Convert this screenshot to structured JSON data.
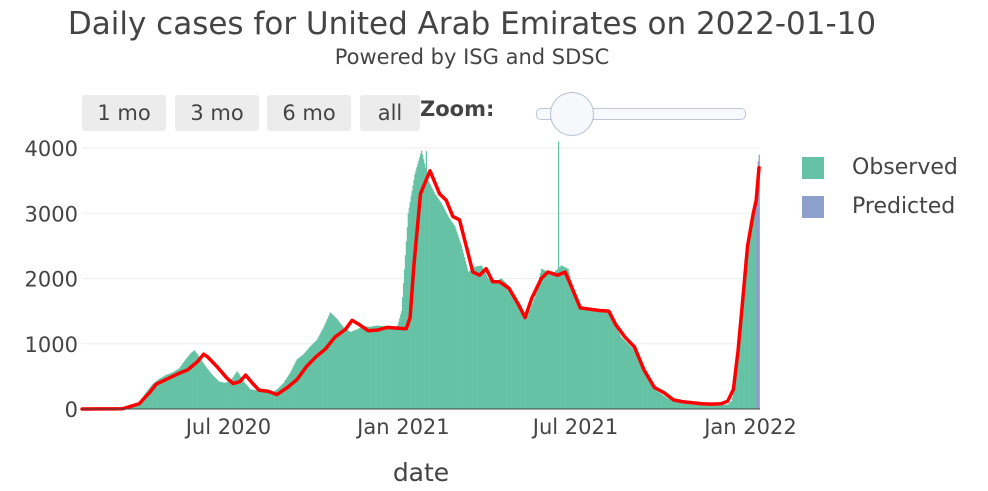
{
  "header": {
    "title": "Daily cases for United Arab Emirates on 2022-01-10",
    "subtitle": "Powered by ISG and SDSC"
  },
  "range_selector": {
    "buttons": [
      "1 mo",
      "3 mo",
      "6 mo",
      "all"
    ],
    "zoom_label": "Zoom:"
  },
  "legend": {
    "observed": "Observed",
    "predicted": "Predicted"
  },
  "colors": {
    "observed": "#66c2a5",
    "predicted": "#8da0cb",
    "trend": "#ff0000",
    "grid": "#eeeeee",
    "text": "#444444"
  },
  "chart_data": {
    "type": "bar",
    "xlabel": "date",
    "ylabel": "",
    "ylim": [
      0,
      4000
    ],
    "x_range": [
      "2020-01-29",
      "2022-01-11"
    ],
    "y_ticks": [
      0,
      1000,
      2000,
      3000,
      4000
    ],
    "x_ticks": [
      {
        "date": "2020-07-01",
        "label": "Jul 2020"
      },
      {
        "date": "2021-01-01",
        "label": "Jan 2021"
      },
      {
        "date": "2021-07-01",
        "label": "Jul 2021"
      },
      {
        "date": "2022-01-01",
        "label": "Jan 2022"
      }
    ],
    "series": [
      {
        "name": "Observed",
        "kind": "bar",
        "points": [
          [
            "2020-01-29",
            0
          ],
          [
            "2020-02-20",
            5
          ],
          [
            "2020-03-15",
            30
          ],
          [
            "2020-03-29",
            100
          ],
          [
            "2020-04-05",
            250
          ],
          [
            "2020-04-12",
            380
          ],
          [
            "2020-04-19",
            460
          ],
          [
            "2020-04-26",
            520
          ],
          [
            "2020-05-03",
            560
          ],
          [
            "2020-05-10",
            620
          ],
          [
            "2020-05-17",
            760
          ],
          [
            "2020-05-22",
            850
          ],
          [
            "2020-05-26",
            900
          ],
          [
            "2020-05-31",
            800
          ],
          [
            "2020-06-07",
            650
          ],
          [
            "2020-06-14",
            520
          ],
          [
            "2020-06-21",
            420
          ],
          [
            "2020-06-28",
            400
          ],
          [
            "2020-07-05",
            470
          ],
          [
            "2020-07-10",
            580
          ],
          [
            "2020-07-17",
            420
          ],
          [
            "2020-07-24",
            300
          ],
          [
            "2020-07-31",
            290
          ],
          [
            "2020-08-07",
            300
          ],
          [
            "2020-08-14",
            240
          ],
          [
            "2020-08-21",
            300
          ],
          [
            "2020-08-28",
            400
          ],
          [
            "2020-09-04",
            560
          ],
          [
            "2020-09-11",
            760
          ],
          [
            "2020-09-18",
            840
          ],
          [
            "2020-09-25",
            960
          ],
          [
            "2020-10-02",
            1060
          ],
          [
            "2020-10-09",
            1250
          ],
          [
            "2020-10-16",
            1480
          ],
          [
            "2020-10-23",
            1380
          ],
          [
            "2020-10-30",
            1250
          ],
          [
            "2020-11-06",
            1180
          ],
          [
            "2020-11-13",
            1220
          ],
          [
            "2020-11-20",
            1270
          ],
          [
            "2020-11-27",
            1260
          ],
          [
            "2020-12-04",
            1280
          ],
          [
            "2020-12-11",
            1270
          ],
          [
            "2020-12-18",
            1260
          ],
          [
            "2020-12-25",
            1230
          ],
          [
            "2020-12-30",
            1500
          ],
          [
            "2021-01-06",
            3000
          ],
          [
            "2021-01-13",
            3600
          ],
          [
            "2021-01-20",
            3960
          ],
          [
            "2021-01-27",
            3500
          ],
          [
            "2021-02-03",
            3300
          ],
          [
            "2021-02-10",
            3150
          ],
          [
            "2021-02-17",
            2950
          ],
          [
            "2021-02-24",
            2800
          ],
          [
            "2021-03-03",
            2500
          ],
          [
            "2021-03-10",
            2100
          ],
          [
            "2021-03-17",
            2180
          ],
          [
            "2021-03-24",
            2200
          ],
          [
            "2021-03-31",
            2000
          ],
          [
            "2021-04-07",
            1950
          ],
          [
            "2021-04-14",
            2000
          ],
          [
            "2021-04-21",
            1900
          ],
          [
            "2021-04-28",
            1700
          ],
          [
            "2021-05-05",
            1500
          ],
          [
            "2021-05-12",
            1450
          ],
          [
            "2021-05-19",
            1700
          ],
          [
            "2021-05-26",
            2150
          ],
          [
            "2021-06-02",
            2100
          ],
          [
            "2021-06-09",
            2100
          ],
          [
            "2021-06-16",
            2200
          ],
          [
            "2021-06-23",
            2150
          ],
          [
            "2021-06-30",
            1750
          ],
          [
            "2021-07-07",
            1550
          ],
          [
            "2021-07-14",
            1540
          ],
          [
            "2021-07-21",
            1530
          ],
          [
            "2021-07-28",
            1510
          ],
          [
            "2021-08-04",
            1500
          ],
          [
            "2021-08-11",
            1300
          ],
          [
            "2021-08-18",
            1100
          ],
          [
            "2021-08-25",
            1000
          ],
          [
            "2021-09-01",
            900
          ],
          [
            "2021-09-08",
            650
          ],
          [
            "2021-09-15",
            450
          ],
          [
            "2021-09-22",
            300
          ],
          [
            "2021-09-29",
            230
          ],
          [
            "2021-10-06",
            160
          ],
          [
            "2021-10-13",
            120
          ],
          [
            "2021-10-20",
            100
          ],
          [
            "2021-10-27",
            90
          ],
          [
            "2021-11-03",
            75
          ],
          [
            "2021-11-10",
            70
          ],
          [
            "2021-11-17",
            68
          ],
          [
            "2021-11-24",
            65
          ],
          [
            "2021-12-01",
            60
          ],
          [
            "2021-12-08",
            70
          ],
          [
            "2021-12-12",
            120
          ],
          [
            "2021-12-15",
            300
          ],
          [
            "2021-12-19",
            900
          ],
          [
            "2021-12-23",
            1700
          ],
          [
            "2021-12-26",
            2300
          ],
          [
            "2021-12-29",
            2600
          ],
          [
            "2022-01-01",
            2850
          ],
          [
            "2022-01-04",
            3000
          ],
          [
            "2022-01-06",
            3050
          ]
        ],
        "spikes": [
          [
            "2021-06-13",
            4100
          ],
          [
            "2021-01-25",
            3950
          ]
        ]
      },
      {
        "name": "Predicted",
        "kind": "bar",
        "points": [
          [
            "2022-01-07",
            3300
          ],
          [
            "2022-01-08",
            3600
          ],
          [
            "2022-01-09",
            3800
          ],
          [
            "2022-01-10",
            3900
          ]
        ]
      },
      {
        "name": "",
        "kind": "line",
        "points": [
          [
            "2020-01-29",
            0
          ],
          [
            "2020-03-12",
            5
          ],
          [
            "2020-03-29",
            80
          ],
          [
            "2020-04-09",
            250
          ],
          [
            "2020-04-16",
            380
          ],
          [
            "2020-04-29",
            470
          ],
          [
            "2020-05-09",
            540
          ],
          [
            "2020-05-19",
            600
          ],
          [
            "2020-05-29",
            720
          ],
          [
            "2020-06-05",
            840
          ],
          [
            "2020-06-09",
            800
          ],
          [
            "2020-06-19",
            650
          ],
          [
            "2020-06-29",
            480
          ],
          [
            "2020-07-06",
            390
          ],
          [
            "2020-07-13",
            420
          ],
          [
            "2020-07-19",
            520
          ],
          [
            "2020-07-26",
            400
          ],
          [
            "2020-08-02",
            290
          ],
          [
            "2020-08-12",
            270
          ],
          [
            "2020-08-21",
            220
          ],
          [
            "2020-09-01",
            330
          ],
          [
            "2020-09-11",
            450
          ],
          [
            "2020-09-21",
            650
          ],
          [
            "2020-10-01",
            800
          ],
          [
            "2020-10-11",
            920
          ],
          [
            "2020-10-21",
            1100
          ],
          [
            "2020-11-01",
            1220
          ],
          [
            "2020-11-08",
            1360
          ],
          [
            "2020-11-15",
            1300
          ],
          [
            "2020-11-25",
            1200
          ],
          [
            "2020-12-05",
            1210
          ],
          [
            "2020-12-15",
            1250
          ],
          [
            "2020-12-25",
            1240
          ],
          [
            "2021-01-04",
            1230
          ],
          [
            "2021-01-08",
            1400
          ],
          [
            "2021-01-12",
            2200
          ],
          [
            "2021-01-19",
            3300
          ],
          [
            "2021-01-29",
            3650
          ],
          [
            "2021-02-08",
            3300
          ],
          [
            "2021-02-15",
            3200
          ],
          [
            "2021-02-22",
            2950
          ],
          [
            "2021-03-01",
            2900
          ],
          [
            "2021-03-08",
            2500
          ],
          [
            "2021-03-15",
            2100
          ],
          [
            "2021-03-22",
            2050
          ],
          [
            "2021-03-29",
            2150
          ],
          [
            "2021-04-05",
            1950
          ],
          [
            "2021-04-12",
            1950
          ],
          [
            "2021-04-22",
            1850
          ],
          [
            "2021-05-02",
            1600
          ],
          [
            "2021-05-09",
            1400
          ],
          [
            "2021-05-16",
            1700
          ],
          [
            "2021-05-26",
            2000
          ],
          [
            "2021-06-02",
            2100
          ],
          [
            "2021-06-12",
            2050
          ],
          [
            "2021-06-20",
            2100
          ],
          [
            "2021-06-26",
            1900
          ],
          [
            "2021-07-06",
            1550
          ],
          [
            "2021-07-16",
            1530
          ],
          [
            "2021-07-26",
            1510
          ],
          [
            "2021-08-05",
            1500
          ],
          [
            "2021-08-12",
            1300
          ],
          [
            "2021-08-22",
            1100
          ],
          [
            "2021-09-01",
            950
          ],
          [
            "2021-09-11",
            600
          ],
          [
            "2021-09-22",
            330
          ],
          [
            "2021-10-02",
            250
          ],
          [
            "2021-10-12",
            140
          ],
          [
            "2021-10-22",
            110
          ],
          [
            "2021-11-01",
            95
          ],
          [
            "2021-11-11",
            80
          ],
          [
            "2021-11-21",
            75
          ],
          [
            "2021-12-01",
            80
          ],
          [
            "2021-12-08",
            120
          ],
          [
            "2021-12-14",
            300
          ],
          [
            "2021-12-19",
            900
          ],
          [
            "2021-12-24",
            1700
          ],
          [
            "2021-12-29",
            2500
          ],
          [
            "2022-01-04",
            3000
          ],
          [
            "2022-01-07",
            3200
          ],
          [
            "2022-01-10",
            3700
          ]
        ]
      }
    ],
    "legend_position": "right",
    "grid": true
  }
}
